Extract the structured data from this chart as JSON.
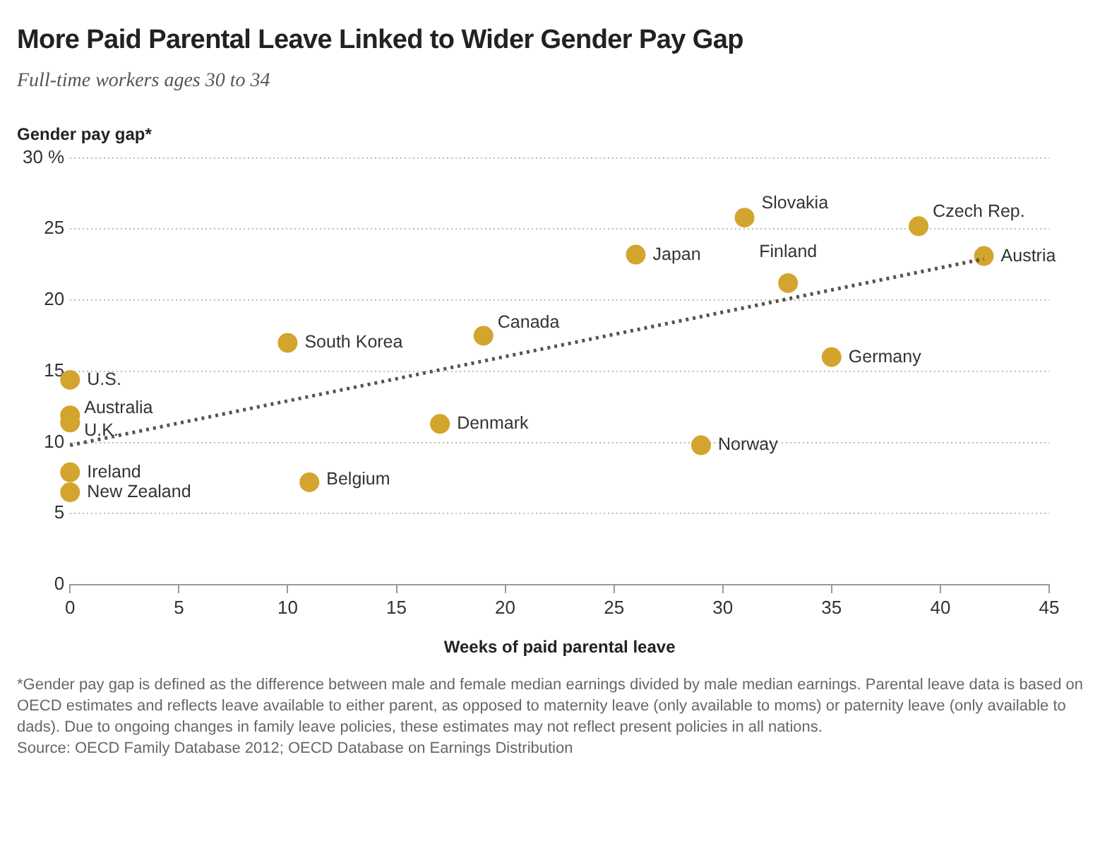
{
  "chart_data": {
    "type": "scatter",
    "title": "More Paid Parental Leave Linked to Wider Gender Pay Gap",
    "subtitle": "Full-time workers ages 30 to 34",
    "xlabel": "Weeks of paid parental leave",
    "ylabel": "Gender pay gap*",
    "series": [
      {
        "color": "#d4a52e",
        "x": [
          0,
          0,
          0,
          0,
          0,
          10,
          11,
          17,
          19,
          26,
          31,
          39,
          33,
          42,
          35,
          29
        ],
        "values": [
          14.4,
          11.9,
          11.4,
          7.9,
          6.5,
          17.0,
          7.2,
          11.3,
          17.5,
          23.2,
          25.8,
          25.2,
          21.2,
          23.1,
          16.0,
          9.8
        ],
        "marker": "circle"
      },
      {
        "type": "line",
        "color": "#55554a",
        "x": [
          0,
          42
        ],
        "values": [
          9.8,
          22.9
        ],
        "line_style": "dotted",
        "marker": "none"
      }
    ],
    "xlim": [
      0,
      45
    ],
    "xticks": [
      0,
      5,
      10,
      15,
      20,
      25,
      30,
      35,
      40,
      45
    ],
    "ylim": [
      0,
      30
    ],
    "yticks": [
      0,
      5,
      10,
      15,
      20,
      25,
      {
        "value": 30,
        "label": "30 %"
      }
    ],
    "grid": "y",
    "legend": false,
    "annotations": [
      {
        "text": "U.S.",
        "x": 0,
        "y": 14.4
      },
      {
        "text": "Australia",
        "x": 0,
        "y": 11.9
      },
      {
        "text": "U.K.",
        "x": 0,
        "y": 11.4
      },
      {
        "text": "Ireland",
        "x": 0,
        "y": 7.9
      },
      {
        "text": "New Zealand",
        "x": 0,
        "y": 6.5
      },
      {
        "text": "South Korea",
        "x": 10,
        "y": 17.0
      },
      {
        "text": "Belgium",
        "x": 11,
        "y": 7.2
      },
      {
        "text": "Denmark",
        "x": 17,
        "y": 11.3
      },
      {
        "text": "Canada",
        "x": 19,
        "y": 17.5
      },
      {
        "text": "Japan",
        "x": 26,
        "y": 23.2
      },
      {
        "text": "Slovakia",
        "x": 31,
        "y": 25.8
      },
      {
        "text": "Czech Rep.",
        "x": 39,
        "y": 25.2
      },
      {
        "text": "Finland",
        "x": 33,
        "y": 21.2
      },
      {
        "text": "Austria",
        "x": 42,
        "y": 23.1
      },
      {
        "text": "Germany",
        "x": 35,
        "y": 16.0
      },
      {
        "text": "Norway",
        "x": 29,
        "y": 9.8
      },
      "*Gender pay gap is defined as the difference between male and female median earnings divided by male median earnings. Parental leave data is based on OECD estimates and reflects leave available to either parent, as opposed to maternity leave (only available to moms) or paternity leave (only available to dads). Due to ongoing changes in family leave policies, these estimates may not reflect present policies in all nations.",
      "Source: OECD Family Database 2012; OECD Database on Earnings Distribution"
    ]
  }
}
